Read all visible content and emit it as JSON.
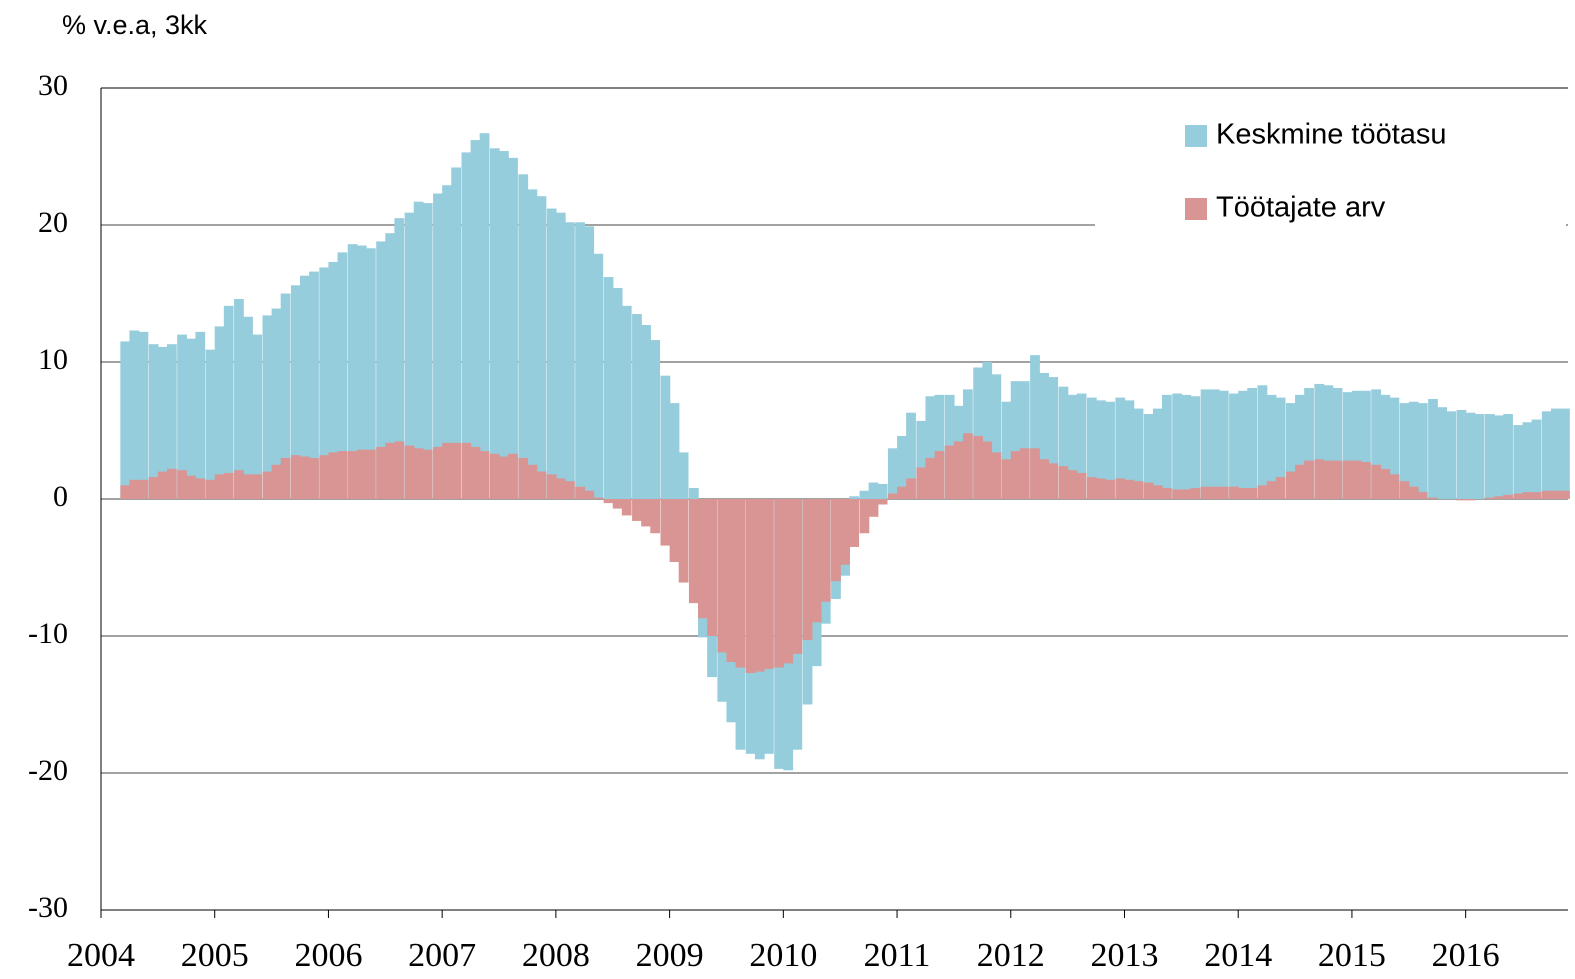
{
  "chart_data": {
    "type": "bar",
    "y_axis_label": "% v.e.a, 3kk",
    "x": [
      2004.17,
      2004.25,
      2004.33,
      2004.42,
      2004.5,
      2004.58,
      2004.67,
      2004.75,
      2004.83,
      2004.92,
      2005,
      2005.08,
      2005.17,
      2005.25,
      2005.33,
      2005.42,
      2005.5,
      2005.58,
      2005.67,
      2005.75,
      2005.83,
      2005.92,
      2006,
      2006.08,
      2006.17,
      2006.25,
      2006.33,
      2006.42,
      2006.5,
      2006.58,
      2006.67,
      2006.75,
      2006.83,
      2006.92,
      2007,
      2007.08,
      2007.17,
      2007.25,
      2007.33,
      2007.42,
      2007.5,
      2007.58,
      2007.67,
      2007.75,
      2007.83,
      2007.92,
      2008,
      2008.08,
      2008.17,
      2008.25,
      2008.33,
      2008.42,
      2008.5,
      2008.58,
      2008.67,
      2008.75,
      2008.83,
      2008.92,
      2009,
      2009.08,
      2009.17,
      2009.25,
      2009.33,
      2009.42,
      2009.5,
      2009.58,
      2009.67,
      2009.75,
      2009.83,
      2009.92,
      2010,
      2010.08,
      2010.17,
      2010.25,
      2010.33,
      2010.42,
      2010.5,
      2010.58,
      2010.67,
      2010.75,
      2010.83,
      2010.92,
      2011,
      2011.08,
      2011.17,
      2011.25,
      2011.33,
      2011.42,
      2011.5,
      2011.58,
      2011.67,
      2011.75,
      2011.83,
      2011.92,
      2012,
      2012.08,
      2012.17,
      2012.25,
      2012.33,
      2012.42,
      2012.5,
      2012.58,
      2012.67,
      2012.75,
      2012.83,
      2012.92,
      2013,
      2013.08,
      2013.17,
      2013.25,
      2013.33,
      2013.42,
      2013.5,
      2013.58,
      2013.67,
      2013.75,
      2013.83,
      2013.92,
      2014,
      2014.08,
      2014.17,
      2014.25,
      2014.33,
      2014.42,
      2014.5,
      2014.58,
      2014.67,
      2014.75,
      2014.83,
      2014.92,
      2015,
      2015.08,
      2015.17,
      2015.25,
      2015.33,
      2015.42,
      2015.5,
      2015.58,
      2015.67,
      2015.75,
      2015.83,
      2015.92,
      2016,
      2016.08,
      2016.17,
      2016.25,
      2016.33,
      2016.42,
      2016.5,
      2016.58,
      2016.67,
      2016.75,
      2016.83
    ],
    "series": [
      {
        "name": "Keskmine töötasu",
        "color": "#96cddc",
        "values": [
          11.5,
          12.3,
          12.2,
          11.3,
          11.1,
          11.3,
          12.0,
          11.7,
          12.2,
          10.9,
          12.6,
          14.1,
          14.6,
          13.3,
          12.0,
          13.4,
          13.9,
          15.0,
          15.6,
          16.3,
          16.6,
          16.9,
          17.3,
          18.0,
          18.6,
          18.5,
          18.3,
          18.8,
          19.4,
          20.5,
          20.9,
          21.7,
          21.6,
          22.3,
          22.9,
          24.2,
          25.3,
          26.2,
          26.7,
          25.6,
          25.4,
          24.9,
          23.7,
          22.6,
          22.1,
          21.2,
          20.9,
          20.2,
          20.2,
          19.9,
          17.9,
          16.2,
          15.4,
          14.1,
          13.5,
          12.7,
          11.6,
          9.0,
          7.0,
          3.4,
          0.8,
          -10.1,
          -13.0,
          -14.8,
          -16.3,
          -18.3,
          -18.6,
          -19.0,
          -18.6,
          -19.7,
          -19.8,
          -18.3,
          -15.0,
          -12.2,
          -9.1,
          -7.3,
          -5.6,
          0.2,
          0.6,
          1.2,
          1.1,
          3.7,
          4.6,
          6.3,
          5.7,
          7.5,
          7.6,
          7.6,
          6.8,
          8.0,
          9.6,
          10.0,
          9.1,
          7.1,
          8.6,
          8.6,
          10.5,
          9.2,
          8.9,
          8.2,
          7.6,
          7.7,
          7.4,
          7.2,
          7.1,
          7.4,
          7.2,
          6.6,
          6.2,
          6.6,
          7.6,
          7.7,
          7.6,
          7.5,
          8.0,
          8.0,
          7.9,
          7.7,
          7.9,
          8.1,
          8.3,
          7.6,
          7.4,
          7.0,
          7.6,
          8.1,
          8.4,
          8.3,
          8.1,
          7.8,
          7.9,
          7.9,
          8.0,
          7.6,
          7.4,
          7.0,
          7.1,
          7.0,
          7.3,
          6.7,
          6.4,
          6.5,
          6.3,
          6.2,
          6.2,
          6.1,
          6.2,
          5.4,
          5.6,
          5.8,
          6.4,
          6.6,
          6.6
        ]
      },
      {
        "name": "Töötajate arv",
        "color": "#d99594",
        "values": [
          1.0,
          1.4,
          1.4,
          1.6,
          2.0,
          2.2,
          2.1,
          1.7,
          1.5,
          1.4,
          1.8,
          1.9,
          2.1,
          1.8,
          1.8,
          2.0,
          2.5,
          3.0,
          3.2,
          3.1,
          3.0,
          3.2,
          3.4,
          3.5,
          3.5,
          3.6,
          3.6,
          3.8,
          4.1,
          4.2,
          3.9,
          3.7,
          3.6,
          3.8,
          4.1,
          4.1,
          4.1,
          3.8,
          3.5,
          3.3,
          3.1,
          3.3,
          3.0,
          2.5,
          2.0,
          1.8,
          1.5,
          1.3,
          0.9,
          0.6,
          0.1,
          -0.3,
          -0.7,
          -1.2,
          -1.6,
          -2.0,
          -2.5,
          -3.4,
          -4.6,
          -6.1,
          -7.6,
          -8.7,
          -10.0,
          -11.2,
          -11.9,
          -12.3,
          -12.7,
          -12.6,
          -12.4,
          -12.3,
          -12.0,
          -11.3,
          -10.3,
          -9.0,
          -7.5,
          -6.0,
          -4.8,
          -3.5,
          -2.5,
          -1.3,
          -0.4,
          0.4,
          0.9,
          1.5,
          2.3,
          3.0,
          3.5,
          3.9,
          4.2,
          4.8,
          4.6,
          4.2,
          3.4,
          2.9,
          3.5,
          3.7,
          3.7,
          2.9,
          2.6,
          2.4,
          2.1,
          1.9,
          1.6,
          1.5,
          1.4,
          1.5,
          1.4,
          1.3,
          1.2,
          1.0,
          0.8,
          0.7,
          0.7,
          0.8,
          0.9,
          0.9,
          0.9,
          0.9,
          0.8,
          0.8,
          1.0,
          1.3,
          1.6,
          2.0,
          2.5,
          2.8,
          2.9,
          2.8,
          2.8,
          2.8,
          2.8,
          2.7,
          2.5,
          2.2,
          1.8,
          1.3,
          0.9,
          0.5,
          0.1,
          0.0,
          0.0,
          -0.1,
          -0.1,
          0.0,
          0.1,
          0.2,
          0.3,
          0.4,
          0.5,
          0.5,
          0.6,
          0.6,
          0.6
        ]
      }
    ],
    "xlim": [
      2004,
      2016.9
    ],
    "xticks": [
      2004,
      2005,
      2006,
      2007,
      2008,
      2009,
      2010,
      2011,
      2012,
      2013,
      2014,
      2015,
      2016
    ],
    "ylim": [
      -30,
      30
    ],
    "yticks": [
      -30,
      -20,
      -10,
      0,
      10,
      20,
      30
    ],
    "grid": true,
    "legend": "upper right"
  }
}
